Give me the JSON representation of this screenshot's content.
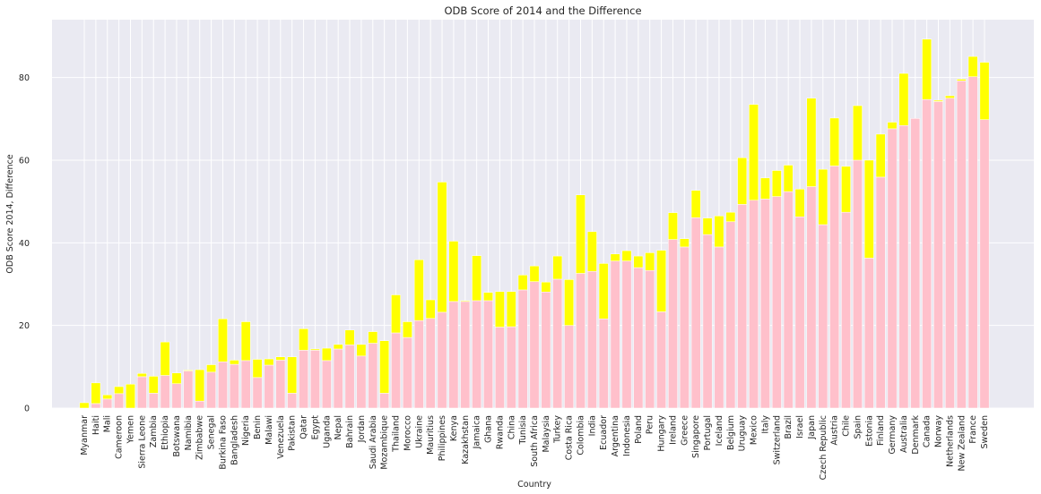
{
  "chart_data": {
    "type": "bar",
    "stacked": true,
    "title": "ODB Score of 2014 and the Difference",
    "xlabel": "Country",
    "ylabel": "ODB Score 2014, Difference",
    "ylim": [
      0,
      94
    ],
    "yticks": [
      0,
      20,
      40,
      60,
      80
    ],
    "grid": true,
    "colors": {
      "base": "#ffc0cb",
      "difference": "#ffff00",
      "plot_background": "#eaeaf2",
      "grid": "#ffffff"
    },
    "categories": [
      "Myanmar",
      "Haiti",
      "Mali",
      "Cameroon",
      "Yemen",
      "Sierra Leone",
      "Zambia",
      "Ethiopia",
      "Botswana",
      "Namibia",
      "Zimbabwe",
      "Senegal",
      "Burkina Faso",
      "Bangladesh",
      "Nigeria",
      "Benin",
      "Malawi",
      "Venezuela",
      "Pakistan",
      "Qatar",
      "Egypt",
      "Uganda",
      "Nepal",
      "Bahrain",
      "Jordan",
      "Saudi Arabia",
      "Mozambique",
      "Thailand",
      "Morocco",
      "Ukraine",
      "Mauritius",
      "Philippines",
      "Kenya",
      "Kazakhstan",
      "Jamaica",
      "Ghana",
      "Rwanda",
      "China",
      "Tunisia",
      "South Africa",
      "Malaysia",
      "Turkey",
      "Costa Rica",
      "Colombia",
      "India",
      "Ecuador",
      "Argentina",
      "Indonesia",
      "Poland",
      "Peru",
      "Hungary",
      "Ireland",
      "Greece",
      "Singapore",
      "Portugal",
      "Iceland",
      "Belgium",
      "Uruguay",
      "Mexico",
      "Italy",
      "Switzerland",
      "Brazil",
      "Israel",
      "Japan",
      "Czech Republic",
      "Austria",
      "Chile",
      "Spain",
      "Estonia",
      "Finland",
      "Germany",
      "Australia",
      "Denmark",
      "Canada",
      "Norway",
      "Netherlands",
      "New Zealand",
      "France",
      "Sweden"
    ],
    "series": [
      {
        "name": "",
        "color": "#ffc0cb",
        "values": [
          0,
          1.1,
          2.2,
          3.5,
          0,
          7.6,
          3.6,
          7.9,
          5.9,
          9,
          1.7,
          8.7,
          11.2,
          10.6,
          11.5,
          7.4,
          10.4,
          11.6,
          3.6,
          14,
          14,
          11.5,
          14.3,
          15.3,
          12.6,
          15.7,
          3.6,
          18.2,
          17.1,
          21.2,
          21.7,
          23.2,
          25.8,
          25.8,
          26,
          26,
          19.6,
          19.7,
          28.6,
          30.6,
          28.1,
          31.2,
          20,
          32.6,
          33.1,
          21.6,
          35.6,
          35.6,
          34,
          33.3,
          23.3,
          40.8,
          39,
          46.1,
          42,
          39,
          45.1,
          49.3,
          50.3,
          50.6,
          51.2,
          52.4,
          46.3,
          53.6,
          44.4,
          58.6,
          47.4,
          60,
          36.3,
          55.9,
          67.6,
          68.4,
          70.1,
          74.7,
          74.2,
          75,
          79.2,
          80.2,
          69.8
        ]
      },
      {
        "name": "",
        "color": "#ffff00",
        "values": [
          1.3,
          5,
          1,
          1.7,
          5.8,
          0.8,
          4.1,
          8.1,
          2.6,
          0.2,
          7.6,
          1.8,
          10.4,
          1,
          9.4,
          4.4,
          1.5,
          0.8,
          8.8,
          5.2,
          0.3,
          3,
          1.1,
          3.6,
          2.8,
          2.8,
          12.7,
          9.2,
          3.8,
          14.7,
          4.5,
          31.5,
          14.6,
          0.2,
          10.9,
          2,
          8.6,
          8.5,
          3.6,
          3.8,
          2.4,
          5.6,
          11.1,
          19,
          9.6,
          13.4,
          1.7,
          2.5,
          2.8,
          4.3,
          14.9,
          6.5,
          2,
          6.6,
          4,
          7.5,
          2.3,
          11.3,
          23.2,
          5.1,
          6.3,
          6.4,
          6.7,
          21.4,
          13.4,
          11.6,
          11.1,
          13.2,
          23.7,
          10.4,
          1.6,
          12.6,
          0,
          14.6,
          0.3,
          0.6,
          0.4,
          4.9,
          13.9
        ]
      }
    ]
  }
}
